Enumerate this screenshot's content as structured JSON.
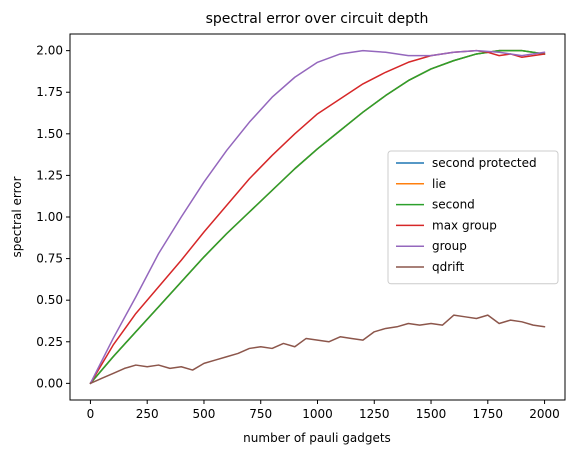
{
  "chart_data": {
    "type": "line",
    "title": "spectral error over circuit depth",
    "xlabel": "number of pauli gadgets",
    "ylabel": "spectral error",
    "xlim": [
      -90,
      2090
    ],
    "ylim": [
      -0.1,
      2.1
    ],
    "xticks": [
      0,
      250,
      500,
      750,
      1000,
      1250,
      1500,
      1750,
      2000
    ],
    "yticks": [
      0.0,
      0.25,
      0.5,
      0.75,
      1.0,
      1.25,
      1.5,
      1.75,
      2.0
    ],
    "xtick_labels": [
      "0",
      "250",
      "500",
      "750",
      "1000",
      "1250",
      "1500",
      "1750",
      "2000"
    ],
    "ytick_labels": [
      "0.00",
      "0.25",
      "0.50",
      "0.75",
      "1.00",
      "1.25",
      "1.50",
      "1.75",
      "2.00"
    ],
    "grid": false,
    "legend_position": "center-right",
    "series": [
      {
        "name": "second protected",
        "color": "#1f77b4",
        "x": [
          0,
          100,
          200,
          300,
          400,
          500,
          600,
          700,
          800,
          900,
          1000,
          1100,
          1200,
          1300,
          1400,
          1500,
          1600,
          1700,
          1800,
          1900,
          2000
        ],
        "y": [
          0.0,
          0.16,
          0.31,
          0.46,
          0.61,
          0.76,
          0.9,
          1.03,
          1.16,
          1.29,
          1.41,
          1.52,
          1.63,
          1.73,
          1.82,
          1.89,
          1.94,
          1.98,
          2.0,
          2.0,
          1.98
        ]
      },
      {
        "name": "lie",
        "color": "#ff7f0e",
        "x": [
          0,
          100,
          200,
          300,
          400,
          500,
          600,
          700,
          800,
          900,
          1000,
          1100,
          1200,
          1300,
          1400,
          1500,
          1600,
          1700,
          1800,
          1900,
          2000
        ],
        "y": [
          0.0,
          0.16,
          0.31,
          0.46,
          0.61,
          0.76,
          0.9,
          1.03,
          1.16,
          1.29,
          1.41,
          1.52,
          1.63,
          1.73,
          1.82,
          1.89,
          1.94,
          1.98,
          2.0,
          2.0,
          1.98
        ]
      },
      {
        "name": "second",
        "color": "#2ca02c",
        "x": [
          0,
          100,
          200,
          300,
          400,
          500,
          600,
          700,
          800,
          900,
          1000,
          1100,
          1200,
          1300,
          1400,
          1500,
          1600,
          1700,
          1800,
          1900,
          2000
        ],
        "y": [
          0.0,
          0.16,
          0.31,
          0.46,
          0.61,
          0.76,
          0.9,
          1.03,
          1.16,
          1.29,
          1.41,
          1.52,
          1.63,
          1.73,
          1.82,
          1.89,
          1.94,
          1.98,
          2.0,
          2.0,
          1.98
        ]
      },
      {
        "name": "max group",
        "color": "#d62728",
        "x": [
          0,
          100,
          200,
          300,
          400,
          500,
          600,
          700,
          800,
          900,
          1000,
          1100,
          1200,
          1300,
          1400,
          1500,
          1600,
          1700,
          1750,
          1800,
          1850,
          1900,
          1950,
          2000
        ],
        "y": [
          0.0,
          0.23,
          0.42,
          0.58,
          0.74,
          0.91,
          1.07,
          1.23,
          1.37,
          1.5,
          1.62,
          1.71,
          1.8,
          1.87,
          1.93,
          1.97,
          1.99,
          2.0,
          1.99,
          1.97,
          1.98,
          1.96,
          1.97,
          1.98
        ]
      },
      {
        "name": "group",
        "color": "#9467bd",
        "x": [
          0,
          100,
          200,
          300,
          400,
          500,
          600,
          700,
          800,
          900,
          1000,
          1100,
          1200,
          1300,
          1400,
          1500,
          1600,
          1700,
          1800,
          1900,
          2000
        ],
        "y": [
          0.0,
          0.27,
          0.52,
          0.78,
          1.0,
          1.21,
          1.4,
          1.57,
          1.72,
          1.84,
          1.93,
          1.98,
          2.0,
          1.99,
          1.97,
          1.97,
          1.99,
          2.0,
          1.99,
          1.97,
          1.99
        ]
      },
      {
        "name": "qdrift",
        "color": "#8c564b",
        "x": [
          0,
          50,
          100,
          150,
          200,
          250,
          300,
          350,
          400,
          450,
          500,
          550,
          600,
          650,
          700,
          750,
          800,
          850,
          900,
          950,
          1000,
          1050,
          1100,
          1150,
          1200,
          1250,
          1300,
          1350,
          1400,
          1450,
          1500,
          1550,
          1600,
          1650,
          1700,
          1750,
          1800,
          1850,
          1900,
          1950,
          2000
        ],
        "y": [
          0.0,
          0.03,
          0.06,
          0.09,
          0.11,
          0.1,
          0.11,
          0.09,
          0.1,
          0.08,
          0.12,
          0.14,
          0.16,
          0.18,
          0.21,
          0.22,
          0.21,
          0.24,
          0.22,
          0.27,
          0.26,
          0.25,
          0.28,
          0.27,
          0.26,
          0.31,
          0.33,
          0.34,
          0.36,
          0.35,
          0.36,
          0.35,
          0.41,
          0.4,
          0.39,
          0.41,
          0.36,
          0.38,
          0.37,
          0.35,
          0.34
        ]
      }
    ]
  }
}
